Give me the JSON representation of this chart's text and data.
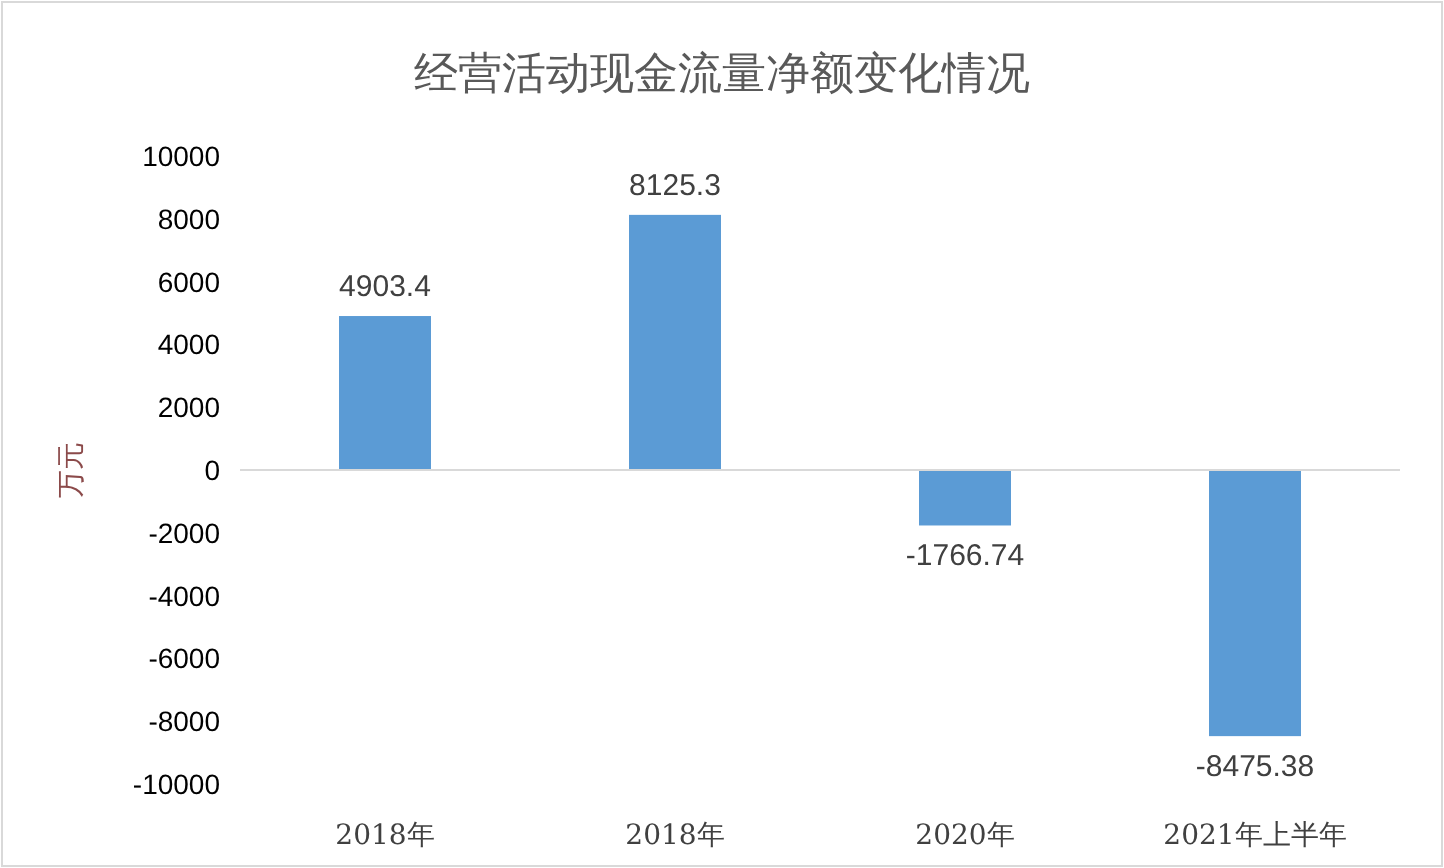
{
  "chart_data": {
    "type": "bar",
    "title": "经营活动现金流量净额变化情况",
    "ylabel": "万元",
    "categories": [
      "2018年",
      "2018年",
      "2020年",
      "2021年上半年"
    ],
    "values": [
      4903.4,
      8125.3,
      -1766.74,
      -8475.38
    ],
    "color": "#5b9bd5",
    "data_labels": true,
    "ylim": [
      -10000,
      10000
    ],
    "yticks": [
      -10000,
      -8000,
      -6000,
      -4000,
      -2000,
      0,
      2000,
      4000,
      6000,
      8000,
      10000
    ]
  }
}
